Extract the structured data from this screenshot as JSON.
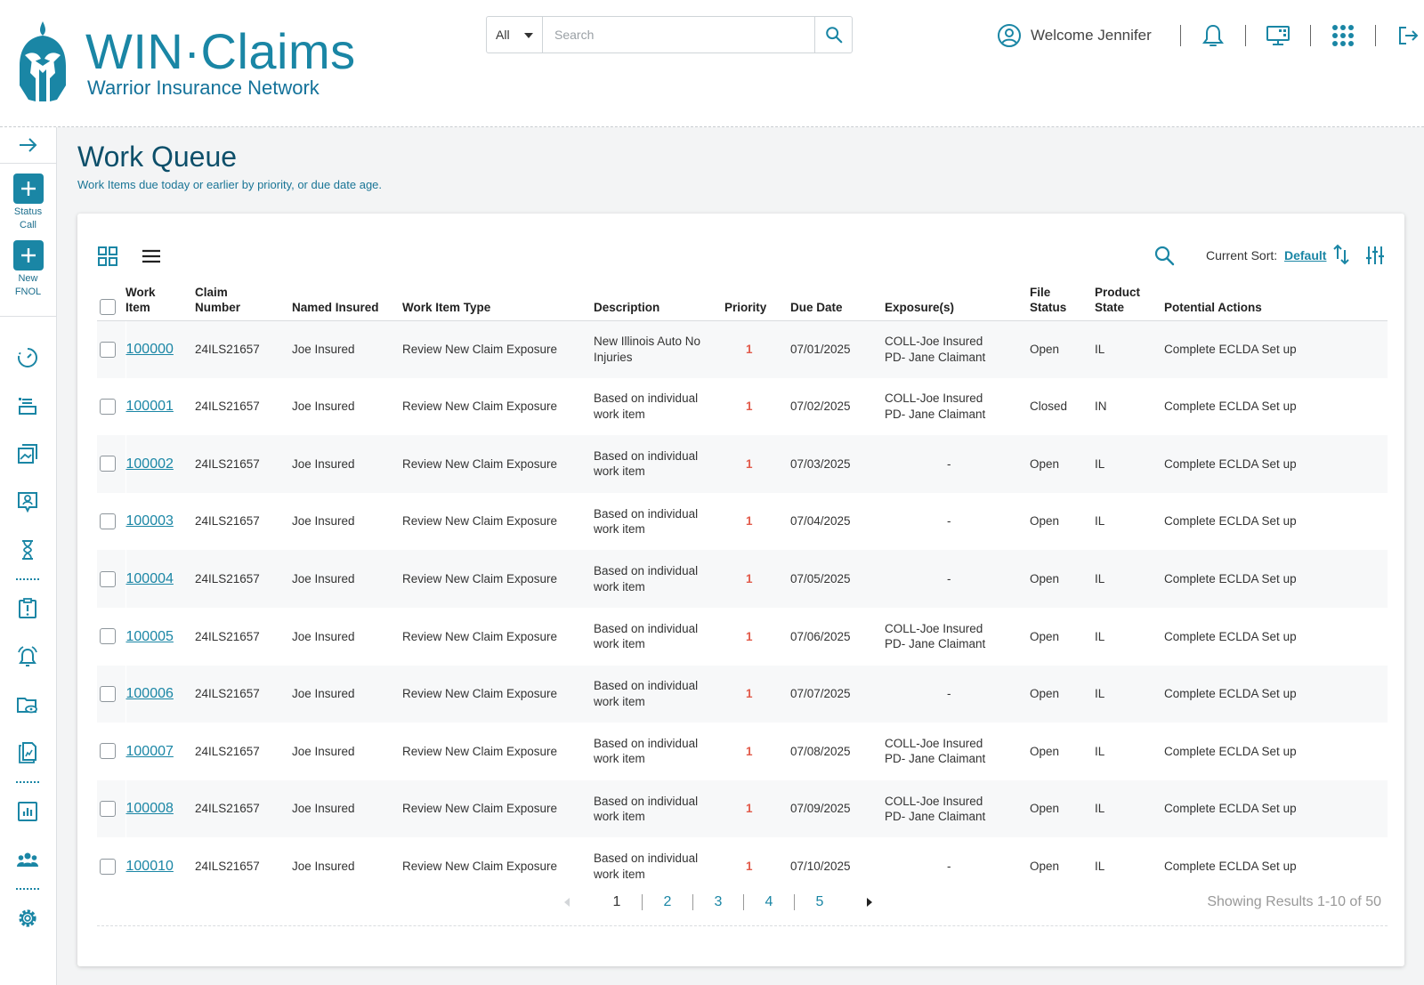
{
  "brand": {
    "title": "WIN·Claims",
    "subtitle": "Warrior Insurance Network",
    "colors": {
      "primary": "#1a86a5",
      "dark": "#0d4f6a",
      "priority": "#e25b4b"
    }
  },
  "search": {
    "scope": "All",
    "placeholder": "Search",
    "icon": "search-icon"
  },
  "header": {
    "welcome": "Welcome Jennifer",
    "icons": [
      "user-circle-icon",
      "bell-icon",
      "monitor-icon",
      "apps-grid-icon",
      "logout-icon"
    ]
  },
  "sidebar": {
    "quick_actions": [
      {
        "label_line1": "Status",
        "label_line2": "Call"
      },
      {
        "label_line1": "New",
        "label_line2": "FNOL"
      }
    ],
    "icons": [
      "dashboard-gauge-icon",
      "inbox-tray-icon",
      "gallery-icon",
      "contact-card-icon",
      "hourglass-icon",
      "alert-clipboard-icon",
      "alarm-bell-icon",
      "folder-view-icon",
      "report-document-icon",
      "bar-chart-icon",
      "team-icon",
      "settings-gear-icon"
    ]
  },
  "page": {
    "title": "Work Queue",
    "subtitle": "Work Items due today or earlier by priority, or due date age."
  },
  "toolbar": {
    "sort_label": "Current Sort:",
    "sort_value": "Default"
  },
  "table": {
    "headers": {
      "work_item_1": "Work",
      "work_item_2": "Item",
      "claim_1": "Claim",
      "claim_2": "Number",
      "named_insured": "Named Insured",
      "work_item_type": "Work Item Type",
      "description": "Description",
      "priority": "Priority",
      "due_date": "Due Date",
      "exposures": "Exposure(s)",
      "file_status_1": "File",
      "file_status_2": "Status",
      "product_state_1": "Product",
      "product_state_2": "State",
      "potential_actions": "Potential Actions"
    },
    "rows": [
      {
        "id": "100000",
        "claim": "24ILS21657",
        "insured": "Joe Insured",
        "type": "Review New Claim Exposure",
        "desc1": "New Illinois Auto No",
        "desc2": "Injuries",
        "priority": "1",
        "due": "07/01/2025",
        "exp1": "COLL-Joe Insured",
        "exp2": "PD- Jane Claimant",
        "status": "Open",
        "state": "IL",
        "action": "Complete ECLDA Set up"
      },
      {
        "id": "100001",
        "claim": "24ILS21657",
        "insured": "Joe Insured",
        "type": "Review New Claim Exposure",
        "desc1": "Based on individual",
        "desc2": "work item",
        "priority": "1",
        "due": "07/02/2025",
        "exp1": "COLL-Joe Insured",
        "exp2": "PD- Jane Claimant",
        "status": "Closed",
        "state": "IN",
        "action": "Complete ECLDA Set up"
      },
      {
        "id": "100002",
        "claim": "24ILS21657",
        "insured": "Joe Insured",
        "type": "Review New Claim Exposure",
        "desc1": "Based on individual",
        "desc2": "work item",
        "priority": "1",
        "due": "07/03/2025",
        "exp1": "-",
        "exp2": "",
        "status": "Open",
        "state": "IL",
        "action": "Complete ECLDA Set up"
      },
      {
        "id": "100003",
        "claim": "24ILS21657",
        "insured": "Joe Insured",
        "type": "Review New Claim Exposure",
        "desc1": "Based on individual",
        "desc2": "work item",
        "priority": "1",
        "due": "07/04/2025",
        "exp1": "-",
        "exp2": "",
        "status": "Open",
        "state": "IL",
        "action": "Complete ECLDA Set up"
      },
      {
        "id": "100004",
        "claim": "24ILS21657",
        "insured": "Joe Insured",
        "type": "Review New Claim Exposure",
        "desc1": "Based on individual",
        "desc2": "work item",
        "priority": "1",
        "due": "07/05/2025",
        "exp1": "-",
        "exp2": "",
        "status": "Open",
        "state": "IL",
        "action": "Complete ECLDA Set up"
      },
      {
        "id": "100005",
        "claim": "24ILS21657",
        "insured": "Joe Insured",
        "type": "Review New Claim Exposure",
        "desc1": "Based on individual",
        "desc2": "work item",
        "priority": "1",
        "due": "07/06/2025",
        "exp1": "COLL-Joe Insured",
        "exp2": "PD- Jane Claimant",
        "status": "Open",
        "state": "IL",
        "action": "Complete ECLDA Set up"
      },
      {
        "id": "100006",
        "claim": "24ILS21657",
        "insured": "Joe Insured",
        "type": "Review New Claim Exposure",
        "desc1": "Based on individual",
        "desc2": "work item",
        "priority": "1",
        "due": "07/07/2025",
        "exp1": "-",
        "exp2": "",
        "status": "Open",
        "state": "IL",
        "action": "Complete ECLDA Set up"
      },
      {
        "id": "100007",
        "claim": "24ILS21657",
        "insured": "Joe Insured",
        "type": "Review New Claim Exposure",
        "desc1": "Based on individual",
        "desc2": "work item",
        "priority": "1",
        "due": "07/08/2025",
        "exp1": "COLL-Joe Insured",
        "exp2": "PD- Jane Claimant",
        "status": "Open",
        "state": "IL",
        "action": "Complete ECLDA Set up"
      },
      {
        "id": "100008",
        "claim": "24ILS21657",
        "insured": "Joe Insured",
        "type": "Review New Claim Exposure",
        "desc1": "Based on individual",
        "desc2": "work item",
        "priority": "1",
        "due": "07/09/2025",
        "exp1": "COLL-Joe Insured",
        "exp2": "PD- Jane Claimant",
        "status": "Open",
        "state": "IL",
        "action": "Complete ECLDA Set up"
      },
      {
        "id": "100010",
        "claim": "24ILS21657",
        "insured": "Joe Insured",
        "type": "Review New Claim Exposure",
        "desc1": "Based on individual",
        "desc2": "work item",
        "priority": "1",
        "due": "07/10/2025",
        "exp1": "-",
        "exp2": "",
        "status": "Open",
        "state": "IL",
        "action": "Complete ECLDA Set up"
      }
    ]
  },
  "pagination": {
    "pages": [
      "1",
      "2",
      "3",
      "4",
      "5"
    ],
    "current": "1",
    "results": "Showing Results 1-10 of 50"
  }
}
